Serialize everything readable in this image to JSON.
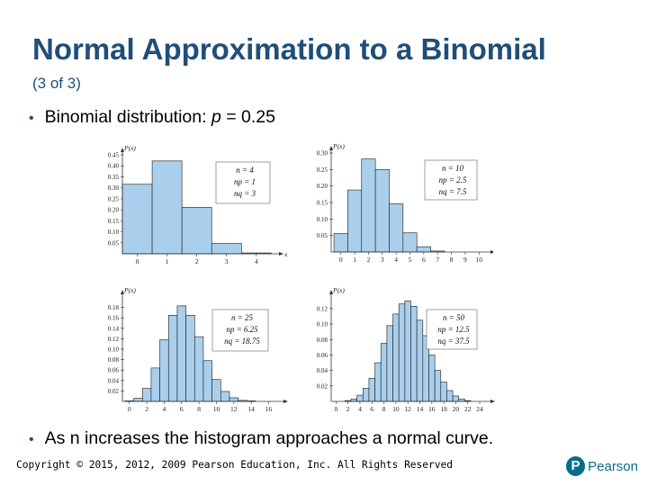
{
  "slide": {
    "title": "Normal Approximation to a Binomial",
    "subtitle": "(3 of 3)",
    "bullet1_prefix": "Binomial distribution: ",
    "bullet1_var": "p",
    "bullet1_suffix": " = 0.25",
    "bullet2": "As n increases the histogram approaches a normal curve.",
    "footer": "Copyright © 2015, 2012, 2009 Pearson Education, Inc. All Rights Reserved",
    "logo_letter": "P",
    "logo_text": "Pearson"
  },
  "colors": {
    "title": "#1f4e79",
    "bar_fill": "#a9cfec",
    "bar_stroke": "#1a1a1a"
  },
  "chart_data": [
    {
      "type": "bar",
      "ylabel": "P(x)",
      "xlabel": "x",
      "legend": [
        "n = 4",
        "np = 1",
        "nq = 3"
      ],
      "x": [
        0,
        1,
        2,
        3,
        4
      ],
      "values": [
        0.316,
        0.422,
        0.211,
        0.047,
        0.004
      ],
      "yticks": [
        "0.45",
        "0.40",
        "0.35",
        "0.30",
        "0.25",
        "0.20",
        "0.15",
        "0.10",
        "0.05"
      ],
      "xticks": [
        "0",
        "1",
        "2",
        "3",
        "4"
      ],
      "ylim": [
        0,
        0.45
      ]
    },
    {
      "type": "bar",
      "ylabel": "P(x)",
      "xlabel": "x",
      "legend": [
        "n = 10",
        "np = 2.5",
        "nq = 7.5"
      ],
      "x": [
        0,
        1,
        2,
        3,
        4,
        5,
        6,
        7,
        8,
        9,
        10
      ],
      "values": [
        0.056,
        0.188,
        0.282,
        0.25,
        0.146,
        0.058,
        0.016,
        0.003,
        0.0,
        0.0,
        0.0
      ],
      "yticks": [
        "0.30",
        "0.25",
        "0.20",
        "0.15",
        "0.10",
        "0.05"
      ],
      "xticks": [
        "0",
        "1",
        "2",
        "3",
        "4",
        "5",
        "6",
        "7",
        "8",
        "9",
        "10"
      ],
      "ylim": [
        0,
        0.3
      ]
    },
    {
      "type": "bar",
      "ylabel": "P(x)",
      "xlabel": "x",
      "legend": [
        "n = 25",
        "np = 6.25",
        "nq = 18.75"
      ],
      "x": [
        0,
        1,
        2,
        3,
        4,
        5,
        6,
        7,
        8,
        9,
        10,
        11,
        12,
        13,
        14,
        15,
        16
      ],
      "values": [
        0.001,
        0.006,
        0.025,
        0.064,
        0.118,
        0.165,
        0.183,
        0.165,
        0.124,
        0.078,
        0.042,
        0.019,
        0.007,
        0.002,
        0.001,
        0.0,
        0.0
      ],
      "yticks": [
        "0.18",
        "0.16",
        "0.14",
        "0.12",
        "0.10",
        "0.08",
        "0.06",
        "0.04",
        "0.02"
      ],
      "xticks": [
        "0",
        "2",
        "4",
        "6",
        "8",
        "10",
        "12",
        "14",
        "16"
      ],
      "ylim": [
        0,
        0.2
      ]
    },
    {
      "type": "bar",
      "ylabel": "P(x)",
      "xlabel": "x",
      "legend": [
        "n = 50",
        "np = 12.5",
        "nq = 37.5"
      ],
      "x": [
        2,
        3,
        4,
        5,
        6,
        7,
        8,
        9,
        10,
        11,
        12,
        13,
        14,
        15,
        16,
        17,
        18,
        19,
        20,
        21,
        22,
        23,
        24
      ],
      "values": [
        0.001,
        0.003,
        0.008,
        0.017,
        0.03,
        0.05,
        0.075,
        0.098,
        0.113,
        0.126,
        0.13,
        0.123,
        0.105,
        0.085,
        0.06,
        0.04,
        0.025,
        0.014,
        0.007,
        0.003,
        0.001,
        0.0,
        0.0
      ],
      "yticks": [
        "0.12",
        "0.10",
        "0.08",
        "0.06",
        "0.04",
        "0.02"
      ],
      "xticks": [
        "0",
        "2",
        "4",
        "6",
        "8",
        "10",
        "12",
        "14",
        "16",
        "18",
        "20",
        "22",
        "24"
      ],
      "ylim": [
        0,
        0.135
      ]
    }
  ]
}
